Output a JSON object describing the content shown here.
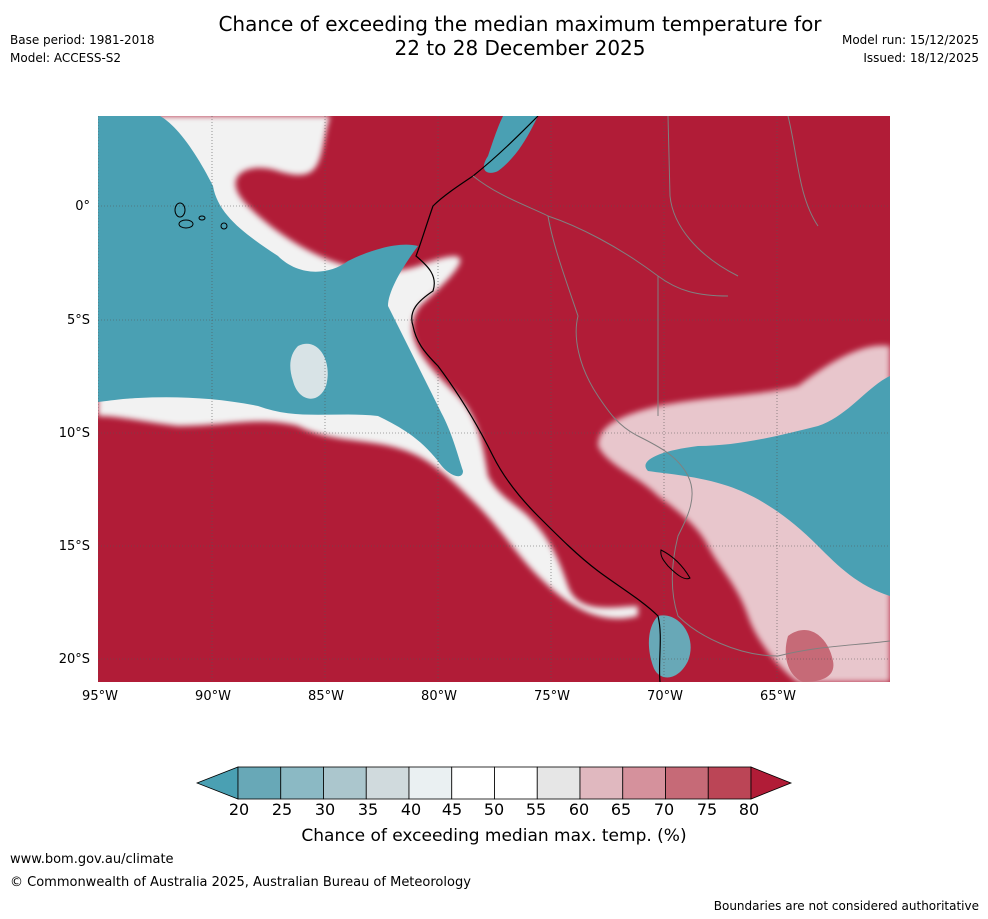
{
  "header": {
    "title_line1": "Chance of exceeding the median maximum temperature for",
    "title_line2": "22 to 28 December 2025",
    "base_period": "Base period: 1981-2018",
    "model": "Model: ACCESS-S2",
    "model_run": "Model run: 15/12/2025",
    "issued": "Issued: 18/12/2025"
  },
  "map": {
    "lat_labels": [
      "0°",
      "5°S",
      "10°S",
      "15°S",
      "20°S"
    ],
    "lon_labels": [
      "95°W",
      "90°W",
      "85°W",
      "80°W",
      "75°W",
      "70°W",
      "65°W"
    ],
    "colors": {
      "below": "#4aa0b3",
      "above": "#b11c37",
      "neutral": "#ffffff",
      "coast": "#000000",
      "border": "#808080"
    }
  },
  "colorbar": {
    "ticks": [
      "20",
      "25",
      "30",
      "35",
      "40",
      "45",
      "50",
      "55",
      "60",
      "65",
      "70",
      "75",
      "80"
    ],
    "colors": [
      "#4aa0b3",
      "#68a8b7",
      "#8bb9c4",
      "#abc6cd",
      "#d0dadd",
      "#eaf0f2",
      "#ffffff",
      "#ffffff",
      "#e6e6e6",
      "#e0b8bf",
      "#d5919c",
      "#c66a77",
      "#bb4556",
      "#b11c37"
    ],
    "title": "Chance of exceeding median max. temp. (%)"
  },
  "footer": {
    "website": "www.bom.gov.au/climate",
    "copyright": "© Commonwealth of Australia 2025, Australian Bureau of Meteorology",
    "note": "Boundaries are not considered authoritative"
  }
}
